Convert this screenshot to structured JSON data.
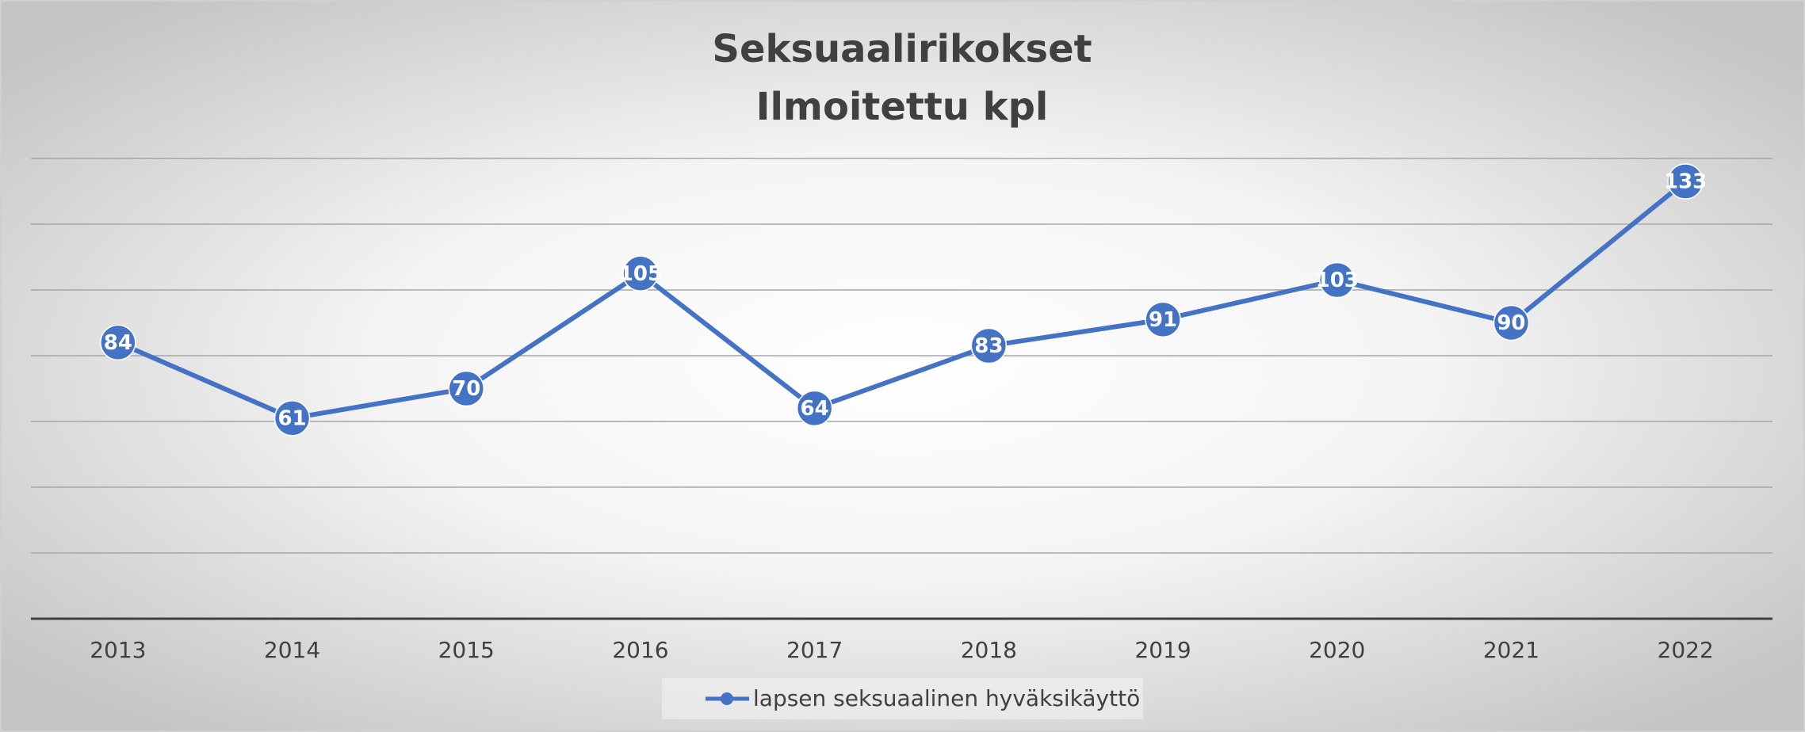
{
  "chart_data": {
    "type": "line",
    "title": "Seksuaalirikokset",
    "subtitle": "Ilmoitettu kpl",
    "categories": [
      "2013",
      "2014",
      "2015",
      "2016",
      "2017",
      "2018",
      "2019",
      "2020",
      "2021",
      "2022"
    ],
    "series": [
      {
        "name": "lapsen seksuaalinen hyväksikäyttö",
        "color": "#4472c4",
        "values": [
          84,
          61,
          70,
          105,
          64,
          83,
          91,
          103,
          90,
          133
        ]
      }
    ],
    "ylim": [
      0,
      140
    ],
    "yticks": [
      0,
      20,
      40,
      60,
      80,
      100,
      120,
      140
    ],
    "grid": true,
    "legend": "bottom"
  }
}
